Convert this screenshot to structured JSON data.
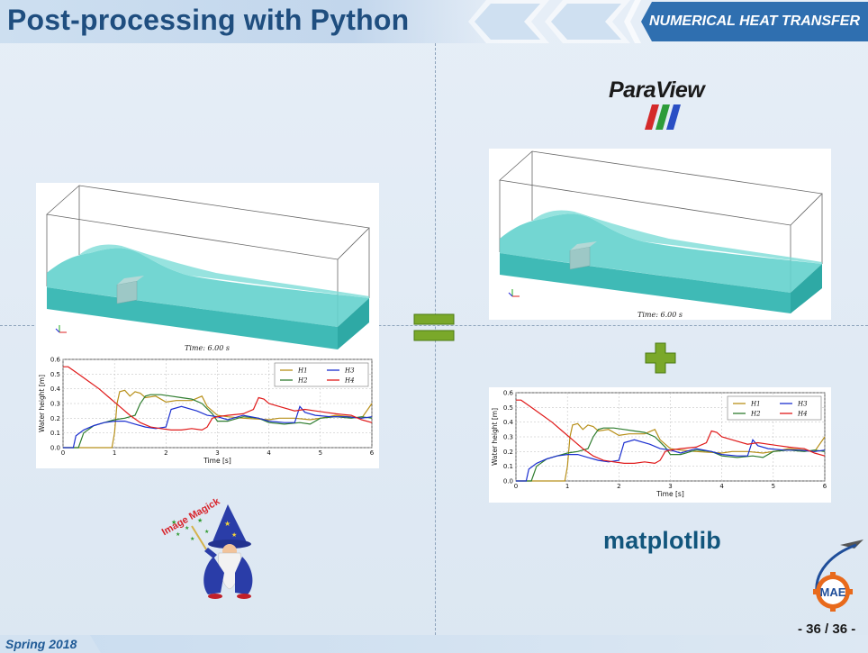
{
  "header": {
    "title": "Post-processing with Python",
    "course": "NUMERICAL HEAT TRANSFER"
  },
  "footer": {
    "semester": "Spring 2018",
    "page": "- 36 / 36 -"
  },
  "logos": {
    "paraview": "ParaView",
    "matplotlib": "matplotlib",
    "imagemagick": "Image Magick",
    "mae": "MAE"
  },
  "simulation": {
    "time_label": "Time: 6.00 s"
  },
  "colors": {
    "title": "#1f4e7f",
    "course_bg": "#2f6fb0",
    "water": "#4cc8c4",
    "equals_green": "#7aa82a",
    "H1": "#b8901a",
    "H2": "#2f7d2f",
    "H3": "#1b2fd0",
    "H4": "#e01a1a"
  },
  "chart_data": [
    {
      "type": "line",
      "xlabel": "Time [s]",
      "ylabel": "Water height [m]",
      "xlim": [
        0,
        6
      ],
      "ylim": [
        0,
        0.6
      ],
      "x_ticks": [
        "0",
        "1",
        "2",
        "3",
        "4",
        "5",
        "6"
      ],
      "y_ticks": [
        "0.0",
        "0.1",
        "0.2",
        "0.3",
        "0.4",
        "0.5",
        "0.6"
      ],
      "grid": true,
      "legend_position": "top-right",
      "series": [
        {
          "name": "H1",
          "x": [
            0,
            0.95,
            1.0,
            1.05,
            1.1,
            1.2,
            1.3,
            1.4,
            1.5,
            1.6,
            1.8,
            2.0,
            2.2,
            2.5,
            2.7,
            2.8,
            3.0,
            3.2,
            3.5,
            4.0,
            4.2,
            4.5,
            4.8,
            5.0,
            5.3,
            5.6,
            5.8,
            6.0
          ],
          "y": [
            0,
            0,
            0.1,
            0.3,
            0.38,
            0.39,
            0.35,
            0.38,
            0.37,
            0.34,
            0.35,
            0.31,
            0.32,
            0.32,
            0.35,
            0.28,
            0.22,
            0.21,
            0.2,
            0.19,
            0.2,
            0.2,
            0.19,
            0.2,
            0.22,
            0.21,
            0.2,
            0.3
          ]
        },
        {
          "name": "H2",
          "x": [
            0,
            0.3,
            0.4,
            0.6,
            0.8,
            1.0,
            1.2,
            1.4,
            1.5,
            1.6,
            1.7,
            1.9,
            2.1,
            2.3,
            2.5,
            2.7,
            2.9,
            3.0,
            3.2,
            3.5,
            3.8,
            4.0,
            4.3,
            4.6,
            4.8,
            5.0,
            5.3,
            5.6,
            5.8,
            6.0
          ],
          "y": [
            0,
            0,
            0.1,
            0.15,
            0.17,
            0.19,
            0.2,
            0.22,
            0.3,
            0.35,
            0.36,
            0.36,
            0.35,
            0.34,
            0.33,
            0.3,
            0.23,
            0.18,
            0.18,
            0.21,
            0.2,
            0.17,
            0.16,
            0.17,
            0.16,
            0.2,
            0.21,
            0.2,
            0.21,
            0.2
          ]
        },
        {
          "name": "H3",
          "x": [
            0,
            0.2,
            0.25,
            0.4,
            0.6,
            0.8,
            1.0,
            1.2,
            1.4,
            1.6,
            1.8,
            2.0,
            2.1,
            2.3,
            2.6,
            2.8,
            3.0,
            3.2,
            3.5,
            3.8,
            4.0,
            4.3,
            4.5,
            4.6,
            4.7,
            4.9,
            5.2,
            5.5,
            5.8,
            6.0
          ],
          "y": [
            0,
            0,
            0.08,
            0.12,
            0.15,
            0.17,
            0.18,
            0.18,
            0.16,
            0.14,
            0.13,
            0.14,
            0.26,
            0.28,
            0.25,
            0.22,
            0.21,
            0.19,
            0.22,
            0.2,
            0.18,
            0.17,
            0.17,
            0.28,
            0.24,
            0.22,
            0.21,
            0.21,
            0.2,
            0.21
          ]
        },
        {
          "name": "H4",
          "x": [
            0,
            0.1,
            0.3,
            0.5,
            0.7,
            0.9,
            1.1,
            1.3,
            1.5,
            1.7,
            1.9,
            2.1,
            2.3,
            2.5,
            2.7,
            2.8,
            2.9,
            3.0,
            3.2,
            3.5,
            3.7,
            3.8,
            3.9,
            4.0,
            4.2,
            4.5,
            4.7,
            4.9,
            5.1,
            5.3,
            5.6,
            5.8,
            6.0
          ],
          "y": [
            0.55,
            0.55,
            0.5,
            0.45,
            0.4,
            0.34,
            0.28,
            0.22,
            0.17,
            0.14,
            0.13,
            0.12,
            0.12,
            0.13,
            0.12,
            0.14,
            0.2,
            0.21,
            0.22,
            0.23,
            0.26,
            0.34,
            0.33,
            0.3,
            0.28,
            0.25,
            0.26,
            0.25,
            0.24,
            0.23,
            0.22,
            0.19,
            0.17
          ]
        }
      ]
    },
    {
      "type": "line",
      "xlabel": "Time [s]",
      "ylabel": "Water height [m]",
      "xlim": [
        0,
        6
      ],
      "ylim": [
        0,
        0.6
      ],
      "x_ticks": [
        "0",
        "1",
        "2",
        "3",
        "4",
        "5",
        "6"
      ],
      "y_ticks": [
        "0.0",
        "0.1",
        "0.2",
        "0.3",
        "0.4",
        "0.5",
        "0.6"
      ],
      "grid": true,
      "legend_position": "top-right",
      "series": [
        {
          "name": "H1",
          "x": [
            0,
            0.95,
            1.0,
            1.05,
            1.1,
            1.2,
            1.3,
            1.4,
            1.5,
            1.6,
            1.8,
            2.0,
            2.2,
            2.5,
            2.7,
            2.8,
            3.0,
            3.2,
            3.5,
            4.0,
            4.2,
            4.5,
            4.8,
            5.0,
            5.3,
            5.6,
            5.8,
            6.0
          ],
          "y": [
            0,
            0,
            0.1,
            0.3,
            0.38,
            0.39,
            0.35,
            0.38,
            0.37,
            0.34,
            0.35,
            0.31,
            0.32,
            0.32,
            0.35,
            0.28,
            0.22,
            0.21,
            0.2,
            0.19,
            0.2,
            0.2,
            0.19,
            0.2,
            0.22,
            0.21,
            0.2,
            0.3
          ]
        },
        {
          "name": "H2",
          "x": [
            0,
            0.3,
            0.4,
            0.6,
            0.8,
            1.0,
            1.2,
            1.4,
            1.5,
            1.6,
            1.7,
            1.9,
            2.1,
            2.3,
            2.5,
            2.7,
            2.9,
            3.0,
            3.2,
            3.5,
            3.8,
            4.0,
            4.3,
            4.6,
            4.8,
            5.0,
            5.3,
            5.6,
            5.8,
            6.0
          ],
          "y": [
            0,
            0,
            0.1,
            0.15,
            0.17,
            0.19,
            0.2,
            0.22,
            0.3,
            0.35,
            0.36,
            0.36,
            0.35,
            0.34,
            0.33,
            0.3,
            0.23,
            0.18,
            0.18,
            0.21,
            0.2,
            0.17,
            0.16,
            0.17,
            0.16,
            0.2,
            0.21,
            0.2,
            0.21,
            0.2
          ]
        },
        {
          "name": "H3",
          "x": [
            0,
            0.2,
            0.25,
            0.4,
            0.6,
            0.8,
            1.0,
            1.2,
            1.4,
            1.6,
            1.8,
            2.0,
            2.1,
            2.3,
            2.6,
            2.8,
            3.0,
            3.2,
            3.5,
            3.8,
            4.0,
            4.3,
            4.5,
            4.6,
            4.7,
            4.9,
            5.2,
            5.5,
            5.8,
            6.0
          ],
          "y": [
            0,
            0,
            0.08,
            0.12,
            0.15,
            0.17,
            0.18,
            0.18,
            0.16,
            0.14,
            0.13,
            0.14,
            0.26,
            0.28,
            0.25,
            0.22,
            0.21,
            0.19,
            0.22,
            0.2,
            0.18,
            0.17,
            0.17,
            0.28,
            0.24,
            0.22,
            0.21,
            0.21,
            0.2,
            0.21
          ]
        },
        {
          "name": "H4",
          "x": [
            0,
            0.1,
            0.3,
            0.5,
            0.7,
            0.9,
            1.1,
            1.3,
            1.5,
            1.7,
            1.9,
            2.1,
            2.3,
            2.5,
            2.7,
            2.8,
            2.9,
            3.0,
            3.2,
            3.5,
            3.7,
            3.8,
            3.9,
            4.0,
            4.2,
            4.5,
            4.7,
            4.9,
            5.1,
            5.3,
            5.6,
            5.8,
            6.0
          ],
          "y": [
            0.55,
            0.55,
            0.5,
            0.45,
            0.4,
            0.34,
            0.28,
            0.22,
            0.17,
            0.14,
            0.13,
            0.12,
            0.12,
            0.13,
            0.12,
            0.14,
            0.2,
            0.21,
            0.22,
            0.23,
            0.26,
            0.34,
            0.33,
            0.3,
            0.28,
            0.25,
            0.26,
            0.25,
            0.24,
            0.23,
            0.22,
            0.19,
            0.17
          ]
        }
      ]
    }
  ]
}
